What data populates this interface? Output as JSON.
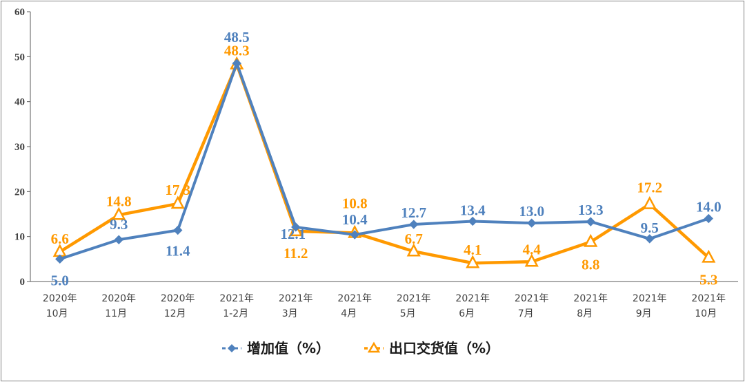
{
  "chart_data": {
    "type": "line",
    "categories": [
      [
        "2020年",
        "10月"
      ],
      [
        "2020年",
        "11月"
      ],
      [
        "2020年",
        "12月"
      ],
      [
        "2021年",
        "1-2月"
      ],
      [
        "2021年",
        "3月"
      ],
      [
        "2021年",
        "4月"
      ],
      [
        "2021年",
        "5月"
      ],
      [
        "2021年",
        "6月"
      ],
      [
        "2021年",
        "7月"
      ],
      [
        "2021年",
        "8月"
      ],
      [
        "2021年",
        "9月"
      ],
      [
        "2021年",
        "10月"
      ]
    ],
    "series": [
      {
        "name": "增加值（%）",
        "values": [
          5.0,
          9.3,
          11.4,
          48.5,
          12.1,
          10.4,
          12.7,
          13.4,
          13.0,
          13.3,
          9.5,
          14.0
        ],
        "labels": [
          "5.0",
          "9.3",
          "11.4",
          "48.5",
          "12.1",
          "10.4",
          "12.7",
          "13.4",
          "13.0",
          "13.3",
          "9.5",
          "14.0"
        ],
        "color": "#4f81bd",
        "marker": "diamond"
      },
      {
        "name": "出口交货值（%）",
        "values": [
          6.6,
          14.8,
          17.3,
          48.3,
          11.2,
          10.8,
          6.7,
          4.1,
          4.4,
          8.8,
          17.2,
          5.3
        ],
        "labels": [
          "6.6",
          "14.8",
          "17.3",
          "48.3",
          "11.2",
          "10.8",
          "6.7",
          "4.1",
          "4.4",
          "8.8",
          "17.2",
          "5.3"
        ],
        "color": "#ff9900",
        "marker": "triangle"
      }
    ],
    "ylim": [
      0,
      60
    ],
    "yticks": [
      0,
      10,
      20,
      30,
      40,
      50,
      60
    ],
    "title": "",
    "xlabel": "",
    "ylabel": "",
    "grid": false,
    "legend_position": "bottom"
  }
}
